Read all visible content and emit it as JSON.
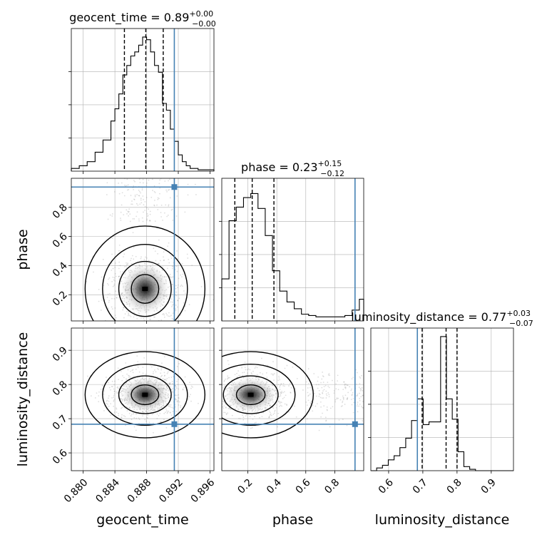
{
  "chart_data": [
    {
      "type": "histogram",
      "panel": "geocent_time",
      "title": "geocent_time = 0.89",
      "title_sup": "+0.00",
      "title_sub": "−0.00",
      "quantiles": [
        0.8852,
        0.8879,
        0.8901
      ],
      "truth": 0.8915,
      "xlim": [
        0.8785,
        0.8965
      ],
      "bins": [
        0.8785,
        0.8795,
        0.8805,
        0.8815,
        0.8825,
        0.8835,
        0.884,
        0.8845,
        0.885,
        0.8855,
        0.886,
        0.8865,
        0.887,
        0.8875,
        0.888,
        0.8885,
        0.889,
        0.8895,
        0.89,
        0.8905,
        0.891,
        0.8915,
        0.892,
        0.8925,
        0.893,
        0.8935,
        0.8945,
        0.8965
      ],
      "counts": [
        0.02,
        0.04,
        0.07,
        0.14,
        0.23,
        0.37,
        0.46,
        0.57,
        0.71,
        0.78,
        0.85,
        0.88,
        0.93,
        0.99,
        0.97,
        0.88,
        0.78,
        0.73,
        0.5,
        0.45,
        0.31,
        0.22,
        0.12,
        0.07,
        0.04,
        0.02,
        0.01
      ],
      "grid": true
    },
    {
      "type": "histogram",
      "panel": "phase",
      "title": "phase = 0.23",
      "title_sup": "+0.15",
      "title_sub": "−0.12",
      "quantiles": [
        0.11,
        0.23,
        0.38
      ],
      "truth": 0.94,
      "xlim": [
        0.02,
        1.0
      ],
      "bins": [
        0.02,
        0.07,
        0.12,
        0.17,
        0.22,
        0.27,
        0.32,
        0.37,
        0.42,
        0.47,
        0.52,
        0.57,
        0.62,
        0.67,
        0.72,
        0.77,
        0.82,
        0.87,
        0.92,
        0.97,
        1.0
      ],
      "counts": [
        0.31,
        0.74,
        0.84,
        0.91,
        0.94,
        0.83,
        0.63,
        0.37,
        0.22,
        0.14,
        0.09,
        0.05,
        0.04,
        0.03,
        0.03,
        0.03,
        0.03,
        0.04,
        0.08,
        0.16
      ],
      "grid": true
    },
    {
      "type": "histogram",
      "panel": "luminosity_distance",
      "title": "luminosity_distance = 0.77",
      "title_sup": "+0.03",
      "title_sub": "−0.07",
      "quantiles": [
        0.698,
        0.768,
        0.8
      ],
      "truth": 0.684,
      "xlim": [
        0.548,
        0.965
      ],
      "bins": [
        0.548,
        0.565,
        0.582,
        0.599,
        0.616,
        0.633,
        0.65,
        0.667,
        0.684,
        0.701,
        0.718,
        0.735,
        0.752,
        0.769,
        0.786,
        0.803,
        0.82,
        0.837,
        0.854,
        0.871,
        0.888,
        0.905,
        0.922,
        0.939,
        0.965
      ],
      "counts": [
        0.0,
        0.02,
        0.04,
        0.08,
        0.11,
        0.17,
        0.24,
        0.37,
        0.53,
        0.34,
        0.36,
        0.36,
        0.99,
        0.53,
        0.38,
        0.14,
        0.03,
        0.01,
        0.0,
        0.0,
        0.0,
        0.0,
        0.0,
        0.0
      ],
      "grid": true
    },
    {
      "type": "scatter",
      "panel": "phase vs geocent_time",
      "x": "geocent_time",
      "y": "phase",
      "xlim": [
        0.8785,
        0.8965
      ],
      "ylim": [
        0.02,
        1.0
      ],
      "truth": [
        0.8915,
        0.94
      ],
      "density_center": [
        0.8878,
        0.24
      ],
      "grid": true
    },
    {
      "type": "scatter",
      "panel": "luminosity_distance vs geocent_time",
      "x": "geocent_time",
      "y": "luminosity_distance",
      "xlim": [
        0.8785,
        0.8965
      ],
      "ylim": [
        0.548,
        0.965
      ],
      "truth": [
        0.8915,
        0.684
      ],
      "density_center": [
        0.8878,
        0.77
      ],
      "grid": true
    },
    {
      "type": "scatter",
      "panel": "luminosity_distance vs phase",
      "x": "phase",
      "y": "luminosity_distance",
      "xlim": [
        0.02,
        1.0
      ],
      "ylim": [
        0.548,
        0.965
      ],
      "truth": [
        0.94,
        0.684
      ],
      "density_center": [
        0.22,
        0.77
      ],
      "grid": true
    }
  ],
  "axes": {
    "geocent_time": {
      "label": "geocent_time",
      "ticks": [
        0.88,
        0.884,
        0.888,
        0.892,
        0.896
      ],
      "tick_labels": [
        "0.880",
        "0.884",
        "0.888",
        "0.892",
        "0.896"
      ]
    },
    "phase": {
      "label": "phase",
      "ticks": [
        0.2,
        0.4,
        0.6,
        0.8
      ],
      "tick_labels": [
        "0.2",
        "0.4",
        "0.6",
        "0.8"
      ]
    },
    "luminosity_distance": {
      "label": "luminosity_distance",
      "ticks": [
        0.6,
        0.7,
        0.8,
        0.9
      ],
      "tick_labels": [
        "0.6",
        "0.7",
        "0.8",
        "0.9"
      ]
    }
  },
  "colors": {
    "histogram": "#000000",
    "quantile": "#000000",
    "truth": "#4682b4",
    "grid": "#b0b0b0",
    "density_dark": "#000000",
    "scatter": "#888888"
  }
}
